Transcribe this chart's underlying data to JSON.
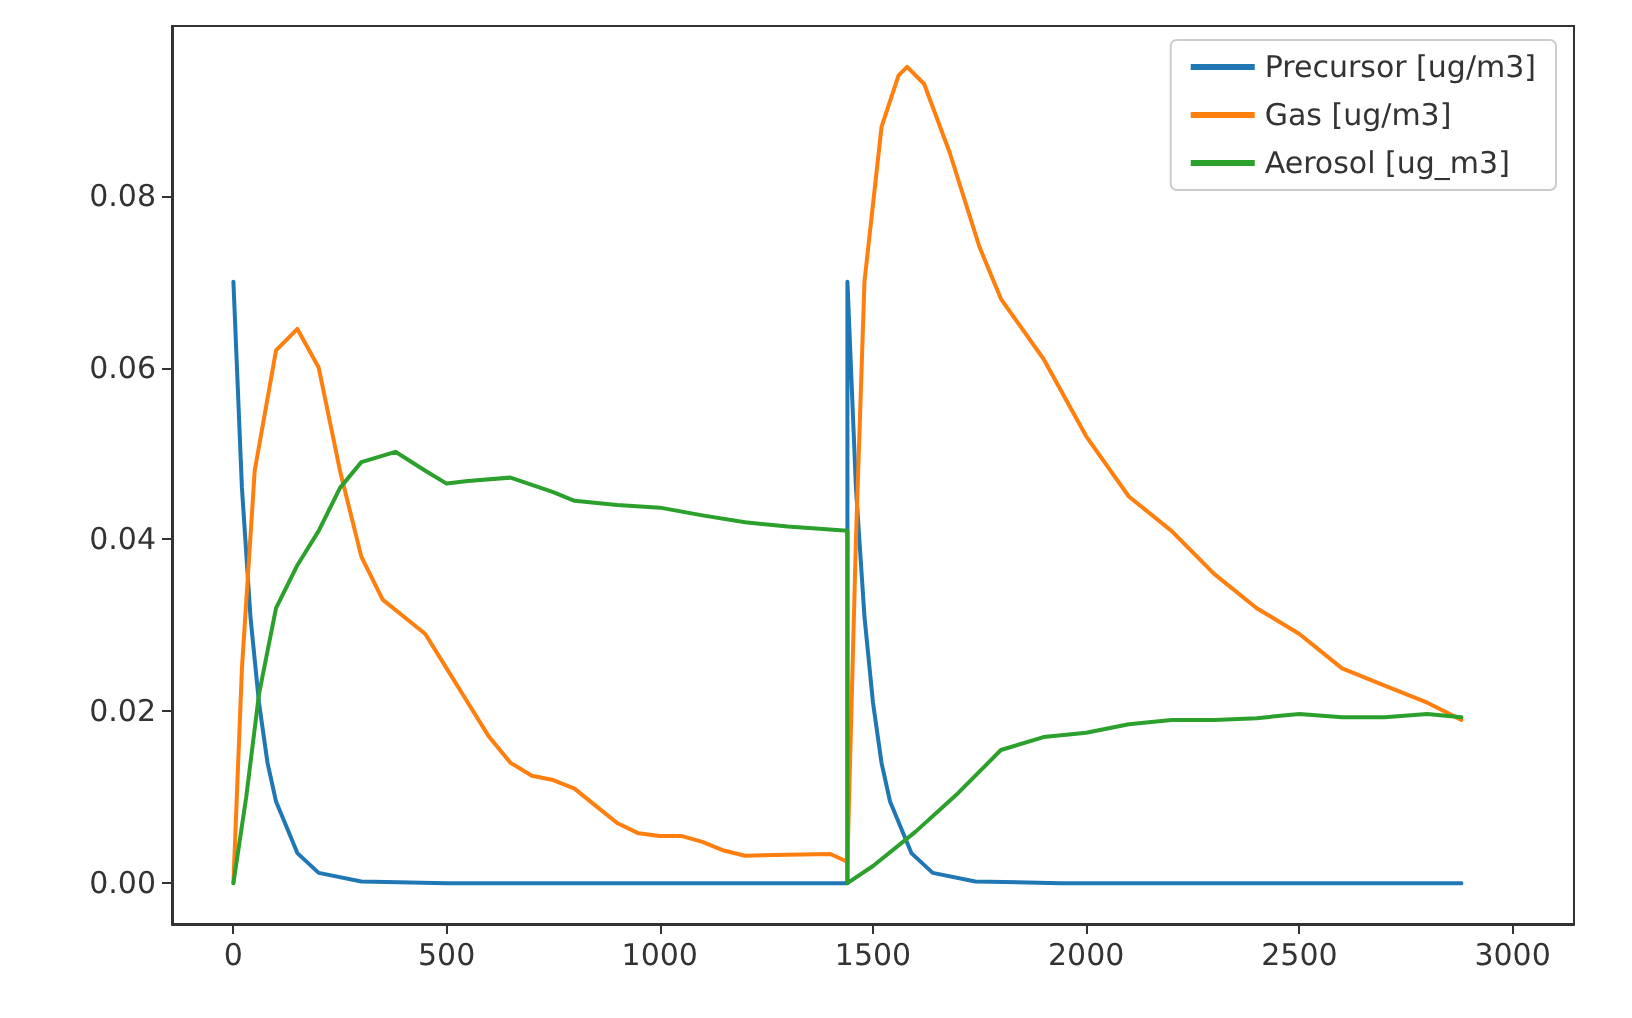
{
  "chart_data": {
    "type": "line",
    "xlim": [
      -144,
      3144
    ],
    "ylim": [
      -0.00475,
      0.09975
    ],
    "xticks": [
      0,
      500,
      1000,
      1500,
      2000,
      2500,
      3000
    ],
    "yticks": [
      {
        "value": 0,
        "label": "0.00"
      },
      {
        "value": 0.02,
        "label": "0.02"
      },
      {
        "value": 0.04,
        "label": "0.04"
      },
      {
        "value": 0.06,
        "label": "0.06"
      },
      {
        "value": 0.08,
        "label": "0.08"
      }
    ],
    "grid": false,
    "legend": "top right",
    "marker": "none",
    "line_style": "solid",
    "series": [
      {
        "name": "Precursor [ug/m3]",
        "color": "#1f77b4",
        "x": [
          0,
          20,
          40,
          60,
          80,
          100,
          150,
          200,
          300,
          500,
          1000,
          1440,
          1440,
          1460,
          1480,
          1500,
          1520,
          1540,
          1590,
          1640,
          1740,
          1940,
          2400,
          2880
        ],
        "values": [
          0.07,
          0.046,
          0.031,
          0.021,
          0.014,
          0.0095,
          0.0035,
          0.0012,
          0.0002,
          0,
          0,
          0,
          0.07,
          0.046,
          0.031,
          0.021,
          0.014,
          0.0095,
          0.0035,
          0.0012,
          0.0002,
          0,
          0,
          0
        ]
      },
      {
        "name": "Gas [ug/m3]",
        "color": "#ff7f0e",
        "x": [
          0,
          20,
          50,
          100,
          150,
          200,
          250,
          300,
          350,
          400,
          450,
          500,
          550,
          600,
          650,
          700,
          750,
          800,
          850,
          900,
          950,
          1000,
          1050,
          1100,
          1150,
          1200,
          1300,
          1400,
          1440,
          1460,
          1480,
          1520,
          1560,
          1580,
          1620,
          1680,
          1750,
          1800,
          1900,
          2000,
          2100,
          2200,
          2300,
          2400,
          2500,
          2600,
          2700,
          2800,
          2880
        ],
        "values": [
          0,
          0.025,
          0.048,
          0.062,
          0.0645,
          0.06,
          0.048,
          0.038,
          0.033,
          0.031,
          0.029,
          0.025,
          0.021,
          0.017,
          0.014,
          0.0125,
          0.012,
          0.011,
          0.009,
          0.007,
          0.0058,
          0.0055,
          0.0055,
          0.0048,
          0.0038,
          0.0032,
          0.0033,
          0.0034,
          0.0025,
          0.04,
          0.07,
          0.088,
          0.094,
          0.095,
          0.093,
          0.085,
          0.074,
          0.068,
          0.061,
          0.052,
          0.045,
          0.041,
          0.036,
          0.032,
          0.029,
          0.025,
          0.023,
          0.021,
          0.019
        ]
      },
      {
        "name": "Aerosol [ug_m3]",
        "color": "#2ca02c",
        "x": [
          0,
          30,
          60,
          100,
          150,
          200,
          250,
          300,
          380,
          450,
          500,
          550,
          650,
          750,
          800,
          900,
          1000,
          1100,
          1200,
          1300,
          1440,
          1440,
          1500,
          1600,
          1700,
          1800,
          1900,
          2000,
          2100,
          2200,
          2300,
          2400,
          2500,
          2600,
          2700,
          2800,
          2880
        ],
        "values": [
          0,
          0.01,
          0.022,
          0.032,
          0.037,
          0.041,
          0.046,
          0.049,
          0.0502,
          0.048,
          0.0465,
          0.0468,
          0.0472,
          0.0455,
          0.0445,
          0.044,
          0.0437,
          0.0428,
          0.042,
          0.0415,
          0.041,
          0,
          0.002,
          0.006,
          0.0105,
          0.0155,
          0.017,
          0.0175,
          0.0185,
          0.019,
          0.019,
          0.0192,
          0.0197,
          0.0193,
          0.0193,
          0.0197,
          0.0193
        ]
      }
    ]
  }
}
